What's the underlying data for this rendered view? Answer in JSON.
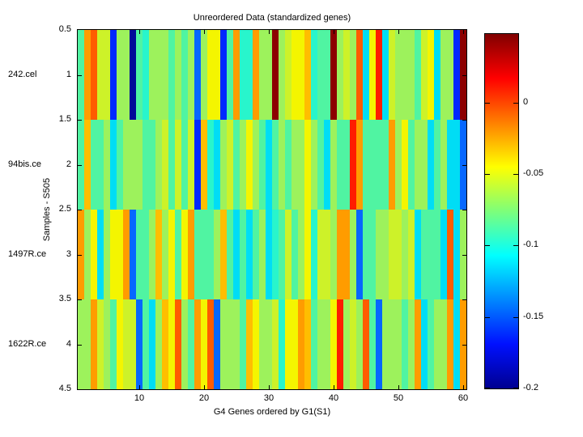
{
  "chart_data": {
    "type": "heatmap",
    "title": "Unreordered Data (standardized genes)",
    "xlabel": "G4 Genes ordered by G1(S1)",
    "ylabel": "Samples - S505",
    "x_ticks": [
      "10",
      "20",
      "30",
      "40",
      "50",
      "60"
    ],
    "x_range": [
      0.5,
      60.5
    ],
    "y_ticks": [
      "0.5",
      "1",
      "1.5",
      "2",
      "2.5",
      "3",
      "3.5",
      "4",
      "4.5"
    ],
    "y_range": [
      0.5,
      4.5
    ],
    "row_labels": [
      "242.cel",
      "94bis.ce",
      "1497R.ce",
      "1622R.ce"
    ],
    "n_cols": 60,
    "n_rows": 4,
    "grid": false,
    "palette": {
      "M": "#8C0000",
      "R": "#FF1C00",
      "o": "#FF5C00",
      "O": "#FF9C00",
      "A": "#FFBE00",
      "Y": "#F4F500",
      "y": "#CDF229",
      "g": "#9DF25C",
      "G": "#50F4A2",
      "T": "#28F5CC",
      "c": "#00DDF5",
      "b": "#0667FF",
      "B": "#0029FF",
      "N": "#000A99"
    },
    "palette_values": {
      "M": 0.04,
      "R": 0.015,
      "o": -0.005,
      "O": -0.025,
      "A": -0.035,
      "Y": -0.05,
      "y": -0.06,
      "g": -0.07,
      "G": -0.085,
      "T": -0.095,
      "c": -0.11,
      "b": -0.125,
      "B": -0.15,
      "N": -0.19
    },
    "rows": [
      "GOoyyBggNGTgggGgGgbgYYBGOTTOggMgyYYATGGMgygocYRcygggGyYcggBM",
      "GAGGgcGgggGGgyGyGyBATcgyGgYgGcGgGggYgGcgGGROGGGGOgYGggcGgccb",
      "OgYcgYYObGGgAgYGYOGGGgAGcGcGgcTGyGgYTyygOOgbGGggyygycGGGcocg",
      "ggOygGYyybGcgAYogGOYobgggGAYggyTYYOAGggYRgygoGbgggGgOcGggOcO"
    ],
    "colorbar": {
      "colormap": "jet",
      "tick_labels": [
        "0",
        "-0.05",
        "-0.1",
        "-0.15",
        "-0.2"
      ],
      "tick_values": [
        0,
        -0.05,
        -0.1,
        -0.15,
        -0.2
      ],
      "range": [
        -0.2,
        0.048
      ]
    }
  }
}
